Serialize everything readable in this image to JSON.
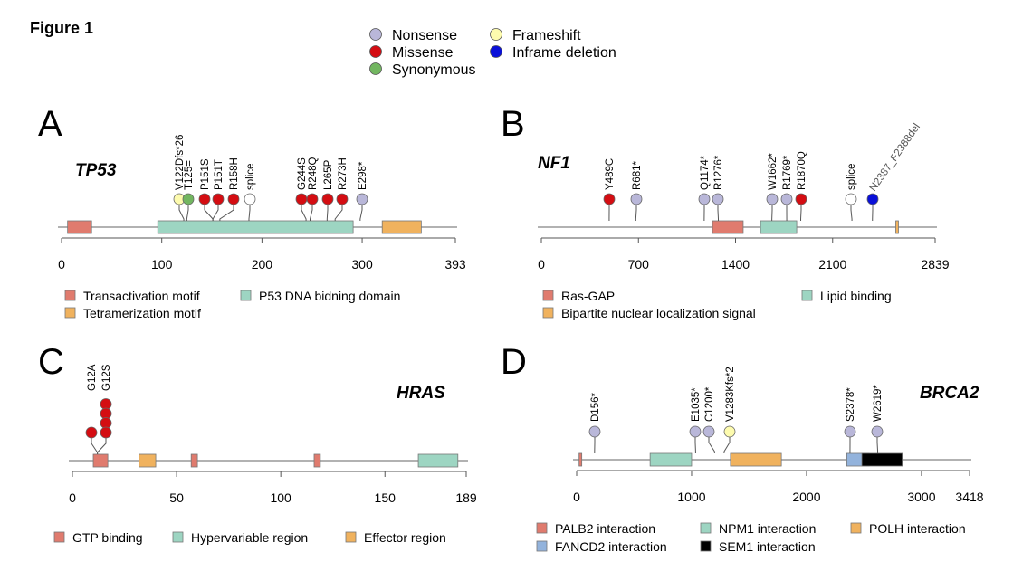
{
  "figure_title": "Figure 1",
  "mutation_legend": [
    {
      "type": "nonsense",
      "label": "Nonsense",
      "color": "#b9b7d9"
    },
    {
      "type": "missense",
      "label": "Missense",
      "color": "#d40d12"
    },
    {
      "type": "synonymous",
      "label": "Synonymous",
      "color": "#72b660"
    },
    {
      "type": "frameshift",
      "label": "Frameshift",
      "color": "#fdfbae"
    },
    {
      "type": "inframe",
      "label": "Inframe deletion",
      "color": "#0a10d8"
    }
  ],
  "splice_color": "#ffffff",
  "chart_data": [
    {
      "type": "lollipop",
      "panel": "A",
      "gene": "TP53",
      "length": 393,
      "xlim": [
        0,
        393
      ],
      "xticks": [
        0,
        100,
        200,
        300,
        393
      ],
      "domains": [
        {
          "name": "Transactivation motif",
          "start": 6,
          "end": 30,
          "color": "#e07b6e"
        },
        {
          "name": "P53 DNA bidning domain",
          "start": 96,
          "end": 291,
          "color": "#9dd5c2"
        },
        {
          "name": "Tetramerization motif",
          "start": 320,
          "end": 359,
          "color": "#f0b25e"
        }
      ],
      "legend": [
        "Transactivation motif",
        "P53 DNA bidning domain",
        "Tetramerization motif"
      ],
      "mutations": [
        {
          "label": "V122Dfs*26",
          "position": 122,
          "type": "frameshift",
          "count": 1
        },
        {
          "label": "T125=",
          "position": 125,
          "type": "synonymous",
          "count": 1
        },
        {
          "label": "P151S",
          "position": 151,
          "type": "missense",
          "count": 1
        },
        {
          "label": "P151T",
          "position": 151,
          "type": "missense",
          "count": 1
        },
        {
          "label": "R158H",
          "position": 158,
          "type": "missense",
          "count": 1
        },
        {
          "label": "splice",
          "position": 187,
          "type": "splice",
          "count": 1
        },
        {
          "label": "G244S",
          "position": 244,
          "type": "missense",
          "count": 1
        },
        {
          "label": "R248Q",
          "position": 248,
          "type": "missense",
          "count": 1
        },
        {
          "label": "L265P",
          "position": 265,
          "type": "missense",
          "count": 1
        },
        {
          "label": "R273H",
          "position": 273,
          "type": "missense",
          "count": 1
        },
        {
          "label": "E298*",
          "position": 298,
          "type": "nonsense",
          "count": 1
        }
      ]
    },
    {
      "type": "lollipop",
      "panel": "B",
      "gene": "NF1",
      "length": 2839,
      "xlim": [
        0,
        2839
      ],
      "xticks": [
        0,
        700,
        1400,
        2100,
        2839
      ],
      "domains": [
        {
          "name": "Ras-GAP",
          "start": 1234,
          "end": 1455,
          "color": "#e07b6e"
        },
        {
          "name": "Lipid binding",
          "start": 1580,
          "end": 1841,
          "color": "#9dd5c2"
        },
        {
          "name": "Bipartite nuclear localization signal",
          "start": 2555,
          "end": 2571,
          "color": "#f0b25e"
        }
      ],
      "legend": [
        "Ras-GAP",
        "Lipid binding",
        "Bipartite nuclear localization signal"
      ],
      "mutations": [
        {
          "label": "Y489C",
          "position": 489,
          "type": "missense",
          "count": 1
        },
        {
          "label": "R681*",
          "position": 681,
          "type": "nonsense",
          "count": 1
        },
        {
          "label": "Q1174*",
          "position": 1174,
          "type": "nonsense",
          "count": 1
        },
        {
          "label": "R1276*",
          "position": 1276,
          "type": "nonsense",
          "count": 1
        },
        {
          "label": "W1662*",
          "position": 1662,
          "type": "nonsense",
          "count": 1
        },
        {
          "label": "R1769*",
          "position": 1769,
          "type": "nonsense",
          "count": 1
        },
        {
          "label": "R1870Q",
          "position": 1870,
          "type": "missense",
          "count": 1
        },
        {
          "label": "splice",
          "position": 2239,
          "type": "splice",
          "count": 1
        },
        {
          "label": "N2387_F2388del",
          "position": 2387,
          "type": "inframe",
          "count": 1
        }
      ]
    },
    {
      "type": "lollipop",
      "panel": "C",
      "gene": "HRAS",
      "length": 189,
      "xlim": [
        0,
        189
      ],
      "xticks": [
        0,
        50,
        100,
        150,
        189
      ],
      "domains": [
        {
          "name": "GTP binding",
          "start": 10,
          "end": 17,
          "color": "#e07b6e"
        },
        {
          "name": "Effector region",
          "start": 32,
          "end": 40,
          "color": "#f0b25e"
        },
        {
          "name": "GTP binding",
          "start": 57,
          "end": 60,
          "color": "#e07b6e"
        },
        {
          "name": "GTP binding",
          "start": 116,
          "end": 119,
          "color": "#e07b6e"
        },
        {
          "name": "Hypervariable region",
          "start": 166,
          "end": 185,
          "color": "#9dd5c2"
        }
      ],
      "legend": [
        "GTP binding",
        "Hypervariable region",
        "Effector region"
      ],
      "mutations": [
        {
          "label": "G12A",
          "position": 12,
          "type": "missense",
          "count": 1
        },
        {
          "label": "G12S",
          "position": 12,
          "type": "missense",
          "count": 4
        }
      ]
    },
    {
      "type": "lollipop",
      "panel": "D",
      "gene": "BRCA2",
      "length": 3418,
      "xlim": [
        0,
        3418
      ],
      "xticks": [
        0,
        1000,
        2000,
        3000,
        3418
      ],
      "domains": [
        {
          "name": "PALB2 interaction",
          "start": 21,
          "end": 39,
          "color": "#e07b6e"
        },
        {
          "name": "NPM1 interaction",
          "start": 639,
          "end": 1000,
          "color": "#9dd5c2"
        },
        {
          "name": "POLH interaction",
          "start": 1338,
          "end": 1781,
          "color": "#f0b25e"
        },
        {
          "name": "FANCD2 interaction",
          "start": 2350,
          "end": 2545,
          "color": "#93b3dc"
        },
        {
          "name": "SEM1 interaction",
          "start": 2481,
          "end": 2832,
          "color": "#000000"
        }
      ],
      "legend": [
        "PALB2 interaction",
        "NPM1 interaction",
        "POLH interaction",
        "FANCD2 interaction",
        "SEM1 interaction"
      ],
      "mutations": [
        {
          "label": "D156*",
          "position": 156,
          "type": "nonsense",
          "count": 1
        },
        {
          "label": "E1035*",
          "position": 1035,
          "type": "nonsense",
          "count": 1
        },
        {
          "label": "C1200*",
          "position": 1200,
          "type": "nonsense",
          "count": 1
        },
        {
          "label": "V1283Kfs*2",
          "position": 1283,
          "type": "frameshift",
          "count": 1
        },
        {
          "label": "S2378*",
          "position": 2378,
          "type": "nonsense",
          "count": 1
        },
        {
          "label": "W2619*",
          "position": 2619,
          "type": "nonsense",
          "count": 1
        }
      ]
    }
  ]
}
